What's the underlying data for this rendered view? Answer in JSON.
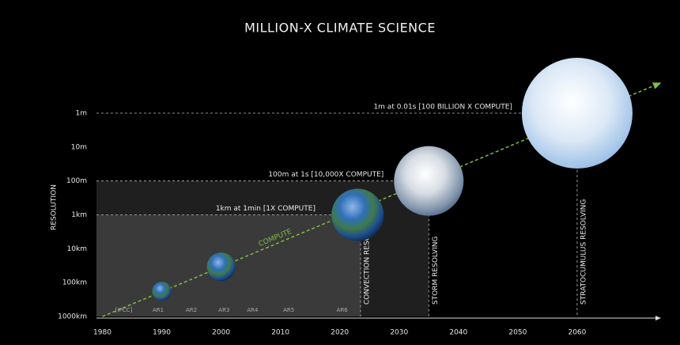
{
  "chart_data": {
    "type": "scatter",
    "title": "MILLION-X CLIMATE SCIENCE",
    "ylabel": "RESOLUTION",
    "log_y": true,
    "xlim": [
      1979,
      2074
    ],
    "xticks": [
      1980,
      1990,
      2000,
      2010,
      2020,
      2030,
      2040,
      2050,
      2060
    ],
    "ylim": [
      1000000,
      1
    ],
    "yticks": [
      {
        "value": 1000000,
        "label": "1000km"
      },
      {
        "value": 100000,
        "label": "100km"
      },
      {
        "value": 10000,
        "label": "10km"
      },
      {
        "value": 1000,
        "label": "1km"
      },
      {
        "value": 100,
        "label": "100m"
      },
      {
        "value": 10,
        "label": "10m"
      },
      {
        "value": 1,
        "label": "1m"
      }
    ],
    "x": [
      1990,
      2000,
      2023,
      2035,
      2060
    ],
    "values": [
      180000,
      34000,
      1000,
      100,
      1
    ],
    "compute_label": "COMPUTE",
    "levels": [
      {
        "text": "1km at 1min [1X COMPUTE]",
        "resolution": 1000,
        "year": 2023.5
      },
      {
        "text": "100m at 1s [10,000X COMPUTE]",
        "resolution": 100,
        "year": 2035
      },
      {
        "text": "1m at 0.01s [100 BILLION X COMPUTE]",
        "resolution": 1,
        "year": 2060
      }
    ],
    "regions": [
      {
        "label": "CONVECTION RESOLVING",
        "year": 2023.5
      },
      {
        "label": "STORM RESOLVING",
        "year": 2035
      },
      {
        "label": "STRATOCUMULUS RESOLVING",
        "year": 2060
      }
    ],
    "reports": {
      "labels": [
        "[IPCC]",
        "AR1",
        "AR2",
        "AR3",
        "AR4",
        "AR5",
        "AR6"
      ],
      "years": [
        1983.6,
        1989.4,
        1995,
        2000.5,
        2005.3,
        2011.4,
        2020.4
      ]
    }
  }
}
